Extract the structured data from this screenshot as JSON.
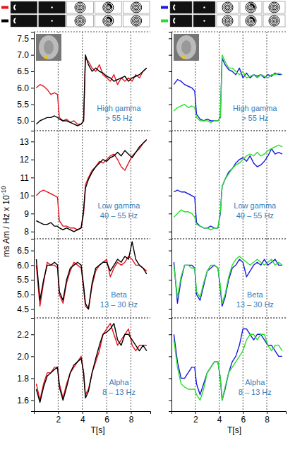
{
  "figure": {
    "ylabel": "ms Am / Hz  x 10",
    "ylabel_exponent": "-10"
  },
  "chart_data": [
    {
      "type": "line",
      "title": "High gamma",
      "subtitle": "> 55 Hz",
      "x": [
        0.2,
        0.5,
        0.8,
        1.1,
        1.4,
        1.7,
        1.95,
        2.1,
        2.4,
        2.7,
        3.0,
        3.3,
        3.6,
        3.9,
        4.1,
        4.25,
        4.5,
        4.8,
        5.1,
        5.4,
        5.7,
        6.0,
        6.3,
        6.6,
        6.9,
        7.2,
        7.5,
        7.8,
        8.1,
        8.4,
        8.7,
        9.0,
        9.3
      ],
      "series": [
        {
          "color": "#e8141c",
          "values": [
            6.0,
            6.1,
            6.05,
            5.95,
            5.8,
            5.85,
            5.8,
            5.1,
            5.0,
            5.05,
            4.95,
            5.0,
            4.9,
            4.9,
            5.0,
            6.9,
            6.8,
            6.6,
            6.5,
            6.7,
            6.4,
            6.3,
            6.2,
            6.4,
            6.1,
            6.3,
            6.2,
            6.3,
            6.2,
            6.4,
            6.3,
            6.5,
            6.6
          ]
        },
        {
          "color": "#000000",
          "values": [
            4.9,
            5.0,
            5.05,
            5.1,
            5.1,
            5.15,
            5.1,
            5.05,
            5.0,
            5.0,
            4.95,
            4.9,
            4.85,
            4.9,
            5.0,
            7.0,
            6.7,
            6.5,
            6.6,
            6.5,
            6.45,
            6.35,
            6.3,
            6.2,
            6.25,
            6.3,
            6.35,
            6.2,
            6.3,
            6.35,
            6.4,
            6.5,
            6.6
          ]
        }
      ],
      "xlim": [
        0,
        9.6
      ],
      "xticks": [
        2,
        4,
        6,
        8
      ],
      "ylim": [
        4.7,
        7.7
      ],
      "yticks": [
        {
          "value": 5,
          "label": "5.0"
        },
        5.5,
        {
          "value": 6,
          "label": "6.0"
        },
        6.5,
        {
          "value": 7,
          "label": "7.0"
        },
        7.5
      ],
      "grid": true,
      "tick_labels": "y"
    },
    {
      "type": "line",
      "title": "High gamma",
      "subtitle": "> 55 Hz",
      "x": [
        0.2,
        0.5,
        0.8,
        1.1,
        1.4,
        1.7,
        1.95,
        2.1,
        2.4,
        2.7,
        3.0,
        3.3,
        3.6,
        3.9,
        4.1,
        4.25,
        4.5,
        4.8,
        5.1,
        5.4,
        5.7,
        6.0,
        6.3,
        6.6,
        6.9,
        7.2,
        7.5,
        7.8,
        8.1,
        8.4,
        8.7,
        9.0,
        9.3
      ],
      "series": [
        {
          "color": "#1a1ae0",
          "values": [
            6.1,
            6.25,
            6.2,
            6.1,
            6.05,
            6.0,
            5.9,
            5.2,
            5.05,
            5.0,
            5.05,
            5.0,
            5.0,
            5.0,
            5.1,
            6.9,
            6.7,
            6.55,
            6.5,
            6.4,
            6.6,
            6.3,
            6.45,
            6.3,
            6.4,
            6.35,
            6.4,
            6.3,
            6.4,
            6.35,
            6.45,
            6.4,
            6.4
          ]
        },
        {
          "color": "#2adf2a",
          "values": [
            5.3,
            5.4,
            5.45,
            5.5,
            5.4,
            5.45,
            5.4,
            5.1,
            5.0,
            5.0,
            5.0,
            4.95,
            5.0,
            5.0,
            5.1,
            7.0,
            6.8,
            6.6,
            6.6,
            6.5,
            6.4,
            6.5,
            6.3,
            6.35,
            6.4,
            6.3,
            6.4,
            6.35,
            6.3,
            6.4,
            6.4,
            6.45,
            6.4
          ]
        }
      ],
      "xlim": [
        0,
        9.6
      ],
      "xticks": [
        2,
        4,
        6,
        8
      ],
      "ylim": [
        4.7,
        7.7
      ],
      "yticks": [
        5,
        5.5,
        6,
        6.5,
        7,
        7.5
      ],
      "grid": true,
      "tick_labels": false
    },
    {
      "type": "line",
      "title": "Low gamma",
      "subtitle": "40 – 55 Hz",
      "x": [
        0.2,
        0.5,
        0.8,
        1.1,
        1.4,
        1.7,
        1.95,
        2.1,
        2.4,
        2.7,
        3.0,
        3.3,
        3.6,
        3.9,
        4.1,
        4.25,
        4.5,
        4.8,
        5.1,
        5.4,
        5.7,
        6.0,
        6.3,
        6.6,
        6.9,
        7.2,
        7.5,
        7.8,
        8.1,
        8.4,
        8.7,
        9.0,
        9.3
      ],
      "series": [
        {
          "color": "#e8141c",
          "values": [
            10.0,
            10.2,
            10.3,
            10.2,
            10.1,
            10.0,
            9.9,
            8.6,
            8.3,
            8.3,
            8.2,
            8.2,
            8.1,
            8.2,
            9.0,
            10.6,
            11.0,
            11.4,
            11.6,
            11.9,
            11.8,
            12.0,
            12.2,
            12.3,
            12.0,
            11.6,
            11.4,
            11.8,
            12.2,
            12.4,
            12.6,
            12.9,
            13.1
          ]
        },
        {
          "color": "#000000",
          "values": [
            8.6,
            8.5,
            8.4,
            8.4,
            8.5,
            8.3,
            8.3,
            8.2,
            8.1,
            8.2,
            8.1,
            8.0,
            8.1,
            8.2,
            9.2,
            10.4,
            10.9,
            11.3,
            11.6,
            11.8,
            12.0,
            11.9,
            12.1,
            12.2,
            12.4,
            12.2,
            12.5,
            12.3,
            12.1,
            12.4,
            12.7,
            12.9,
            13.1
          ]
        }
      ],
      "xlim": [
        0,
        9.6
      ],
      "xticks": [
        2,
        4,
        6,
        8
      ],
      "ylim": [
        7.6,
        13.6
      ],
      "yticks": [
        8,
        9,
        10,
        11,
        12,
        13
      ],
      "grid": true,
      "tick_labels": "y"
    },
    {
      "type": "line",
      "title": "Low gamma",
      "subtitle": "40 – 55 Hz",
      "x": [
        0.2,
        0.5,
        0.8,
        1.1,
        1.4,
        1.7,
        1.95,
        2.1,
        2.4,
        2.7,
        3.0,
        3.3,
        3.6,
        3.9,
        4.1,
        4.25,
        4.5,
        4.8,
        5.1,
        5.4,
        5.7,
        6.0,
        6.3,
        6.6,
        6.9,
        7.2,
        7.5,
        7.8,
        8.1,
        8.4,
        8.7,
        9.0,
        9.3
      ],
      "series": [
        {
          "color": "#1a1ae0",
          "values": [
            10.2,
            10.3,
            10.2,
            10.2,
            10.1,
            10.0,
            9.9,
            8.5,
            8.3,
            8.2,
            8.2,
            8.3,
            8.2,
            8.2,
            9.0,
            10.5,
            10.9,
            11.3,
            11.5,
            11.8,
            12.0,
            12.1,
            11.9,
            12.2,
            11.8,
            11.6,
            11.7,
            11.9,
            12.2,
            12.6,
            12.3,
            12.4,
            12.3
          ]
        },
        {
          "color": "#2adf2a",
          "values": [
            8.8,
            9.0,
            9.2,
            9.1,
            9.1,
            9.0,
            8.8,
            8.4,
            8.3,
            8.2,
            8.2,
            8.1,
            8.2,
            8.2,
            9.1,
            10.5,
            10.9,
            11.2,
            11.5,
            11.7,
            11.8,
            12.0,
            12.2,
            12.3,
            12.2,
            12.4,
            12.2,
            12.3,
            12.5,
            12.6,
            12.7,
            12.8,
            12.7
          ]
        }
      ],
      "xlim": [
        0,
        9.6
      ],
      "xticks": [
        2,
        4,
        6,
        8
      ],
      "ylim": [
        7.6,
        13.6
      ],
      "yticks": [
        8,
        9,
        10,
        11,
        12,
        13
      ],
      "grid": true,
      "tick_labels": false
    },
    {
      "type": "line",
      "title": "Beta",
      "subtitle": "13 – 30 Hz",
      "x": [
        0.2,
        0.5,
        0.8,
        1.1,
        1.4,
        1.7,
        1.95,
        2.1,
        2.4,
        2.7,
        3.0,
        3.3,
        3.6,
        3.9,
        4.1,
        4.25,
        4.5,
        4.8,
        5.1,
        5.4,
        5.7,
        6.0,
        6.3,
        6.6,
        6.9,
        7.2,
        7.5,
        7.8,
        8.1,
        8.4,
        8.7,
        9.0,
        9.3
      ],
      "series": [
        {
          "color": "#e8141c",
          "values": [
            6.0,
            4.6,
            5.4,
            6.1,
            6.0,
            6.0,
            5.9,
            5.0,
            4.7,
            5.4,
            5.8,
            6.1,
            6.0,
            5.9,
            5.2,
            4.6,
            4.5,
            5.3,
            5.8,
            6.0,
            6.1,
            6.2,
            5.6,
            5.9,
            6.1,
            6.0,
            6.1,
            6.3,
            6.2,
            6.0,
            6.0,
            5.9,
            5.8
          ]
        },
        {
          "color": "#000000",
          "values": [
            6.2,
            4.8,
            5.5,
            6.0,
            6.0,
            6.1,
            6.0,
            5.1,
            4.8,
            5.5,
            5.9,
            6.0,
            6.1,
            6.0,
            5.3,
            4.7,
            4.5,
            5.4,
            5.9,
            6.0,
            6.1,
            6.1,
            5.8,
            6.0,
            6.2,
            6.1,
            6.3,
            6.2,
            6.8,
            6.2,
            6.0,
            5.9,
            5.7
          ]
        }
      ],
      "xlim": [
        0,
        9.6
      ],
      "xticks": [
        2,
        4,
        6,
        8
      ],
      "ylim": [
        4.2,
        6.9
      ],
      "yticks": [
        4.5,
        {
          "value": 5,
          "label": "5.0"
        },
        5.5,
        {
          "value": 6,
          "label": "6.0"
        },
        6.5
      ],
      "grid": true,
      "tick_labels": "y"
    },
    {
      "type": "line",
      "title": "Beta",
      "subtitle": "13 – 30 Hz",
      "x": [
        0.2,
        0.5,
        0.8,
        1.1,
        1.4,
        1.7,
        1.95,
        2.1,
        2.4,
        2.7,
        3.0,
        3.3,
        3.6,
        3.9,
        4.1,
        4.25,
        4.5,
        4.8,
        5.1,
        5.4,
        5.7,
        6.0,
        6.3,
        6.6,
        6.9,
        7.2,
        7.5,
        7.8,
        8.1,
        8.4,
        8.7,
        9.0,
        9.3
      ],
      "series": [
        {
          "color": "#1a1ae0",
          "values": [
            6.1,
            4.7,
            5.5,
            6.0,
            6.0,
            6.0,
            5.9,
            5.0,
            4.8,
            5.3,
            5.8,
            5.9,
            6.0,
            5.9,
            5.2,
            4.6,
            4.9,
            5.5,
            5.9,
            6.0,
            6.2,
            6.1,
            5.6,
            5.8,
            6.0,
            6.1,
            6.0,
            6.2,
            6.0,
            6.1,
            6.2,
            6.0,
            6.0
          ]
        },
        {
          "color": "#2adf2a",
          "values": [
            6.0,
            4.9,
            5.6,
            6.0,
            6.0,
            5.9,
            5.9,
            5.1,
            4.9,
            5.4,
            5.8,
            6.0,
            6.0,
            5.9,
            5.3,
            4.7,
            5.0,
            5.6,
            6.0,
            6.2,
            6.3,
            6.2,
            6.1,
            6.0,
            6.1,
            6.2,
            6.1,
            6.0,
            6.1,
            6.2,
            6.0,
            6.1,
            6.0
          ]
        }
      ],
      "xlim": [
        0,
        9.6
      ],
      "xticks": [
        2,
        4,
        6,
        8
      ],
      "ylim": [
        4.2,
        6.9
      ],
      "yticks": [
        4.5,
        5,
        5.5,
        6,
        6.5
      ],
      "grid": true,
      "tick_labels": false
    },
    {
      "type": "line",
      "title": "Alpha",
      "subtitle": "8 – 13 Hz",
      "xlabel": "T[s]",
      "x": [
        0.2,
        0.5,
        0.8,
        1.1,
        1.4,
        1.7,
        1.95,
        2.1,
        2.4,
        2.7,
        3.0,
        3.3,
        3.6,
        3.9,
        4.1,
        4.25,
        4.5,
        4.8,
        5.1,
        5.4,
        5.7,
        6.0,
        6.3,
        6.6,
        6.9,
        7.2,
        7.5,
        7.8,
        8.1,
        8.4,
        8.7,
        9.0,
        9.3
      ],
      "series": [
        {
          "color": "#e8141c",
          "values": [
            1.75,
            1.6,
            1.75,
            1.85,
            1.85,
            1.9,
            1.9,
            1.75,
            1.62,
            1.75,
            1.85,
            1.9,
            1.95,
            2.0,
            1.85,
            1.65,
            1.7,
            1.85,
            1.95,
            2.05,
            2.2,
            2.25,
            2.3,
            2.2,
            2.1,
            2.15,
            2.2,
            2.25,
            2.1,
            2.05,
            2.1,
            2.1,
            2.1
          ]
        },
        {
          "color": "#000000",
          "values": [
            1.7,
            1.58,
            1.72,
            1.82,
            1.85,
            1.88,
            1.9,
            1.72,
            1.6,
            1.72,
            1.85,
            1.92,
            1.95,
            1.98,
            1.85,
            1.62,
            1.68,
            1.85,
            1.98,
            2.1,
            2.2,
            2.22,
            2.25,
            2.3,
            2.15,
            2.1,
            2.2,
            2.2,
            2.15,
            2.1,
            2.05,
            2.1,
            2.05
          ]
        }
      ],
      "xlim": [
        0,
        9.6
      ],
      "xticks": [
        2,
        4,
        6,
        8
      ],
      "ylim": [
        1.5,
        2.35
      ],
      "yticks": [
        1.6,
        1.8,
        {
          "value": 2,
          "label": "2.0"
        },
        2.2
      ],
      "grid": true
    },
    {
      "type": "line",
      "title": "Alpha",
      "subtitle": "8 – 13 Hz",
      "xlabel": "T[s]",
      "x": [
        0.2,
        0.5,
        0.8,
        1.1,
        1.4,
        1.7,
        1.95,
        2.1,
        2.4,
        2.7,
        3.0,
        3.3,
        3.6,
        3.9,
        4.1,
        4.25,
        4.5,
        4.8,
        5.1,
        5.4,
        5.7,
        6.0,
        6.3,
        6.6,
        6.9,
        7.2,
        7.5,
        7.8,
        8.1,
        8.4,
        8.7,
        9.0,
        9.3
      ],
      "series": [
        {
          "color": "#1a1ae0",
          "values": [
            2.2,
            1.95,
            1.8,
            1.8,
            1.85,
            1.9,
            1.9,
            1.75,
            1.65,
            1.75,
            1.85,
            1.9,
            1.95,
            1.95,
            1.8,
            1.6,
            1.7,
            1.85,
            1.95,
            2.0,
            2.1,
            2.25,
            2.25,
            2.2,
            2.15,
            2.2,
            2.2,
            2.15,
            2.1,
            2.1,
            2.05,
            2.0,
            2.0
          ]
        },
        {
          "color": "#2adf2a",
          "values": [
            2.15,
            1.9,
            1.75,
            1.72,
            1.7,
            1.7,
            1.7,
            1.65,
            1.6,
            1.7,
            1.85,
            1.9,
            1.95,
            1.95,
            1.8,
            1.6,
            1.72,
            1.85,
            1.9,
            1.95,
            2.0,
            2.05,
            2.15,
            2.2,
            2.2,
            2.15,
            2.2,
            2.2,
            2.1,
            2.05,
            2.1,
            2.1,
            2.05
          ]
        }
      ],
      "xlim": [
        0,
        9.6
      ],
      "xticks": [
        2,
        4,
        6,
        8
      ],
      "ylim": [
        1.5,
        2.35
      ],
      "yticks": [
        1.6,
        1.8,
        2,
        2.2
      ],
      "grid": true,
      "tick_labels": "x"
    }
  ]
}
